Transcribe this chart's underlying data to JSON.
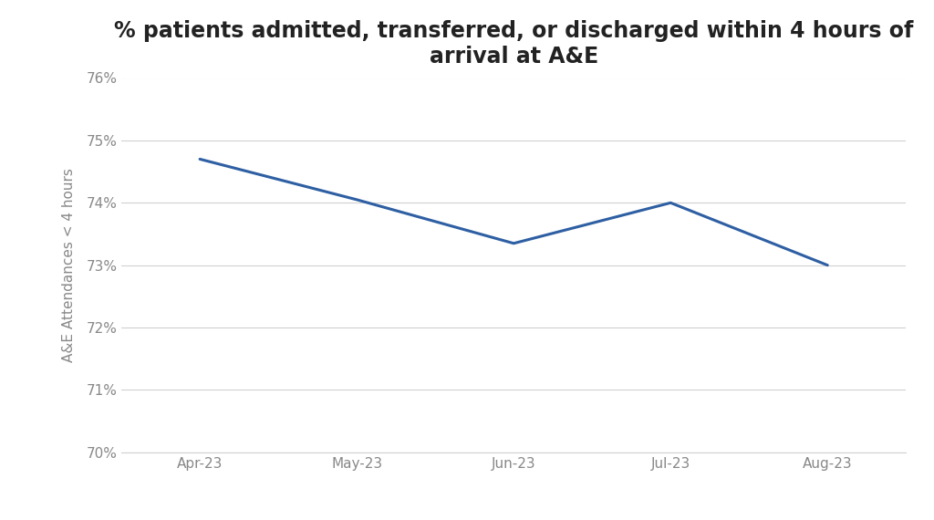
{
  "title": "% patients admitted, transferred, or discharged within 4 hours of\narrival at A&E",
  "xlabel": "",
  "ylabel": "A&E Attendances < 4 hours",
  "x_labels": [
    "Apr-23",
    "May-23",
    "Jun-23",
    "Jul-23",
    "Aug-23"
  ],
  "y_values": [
    74.7,
    74.05,
    73.35,
    74.0,
    73.0
  ],
  "ylim": [
    70,
    76
  ],
  "yticks": [
    70,
    71,
    72,
    73,
    74,
    75,
    76
  ],
  "line_color": "#2E5FA3",
  "line_width": 2.2,
  "background_color": "#ffffff",
  "figure_edge_color": "#e0e0e0",
  "grid_color": "#d0d0d0",
  "title_fontsize": 17,
  "axis_label_fontsize": 11,
  "tick_fontsize": 11,
  "tick_color": "#888888",
  "title_color": "#222222"
}
